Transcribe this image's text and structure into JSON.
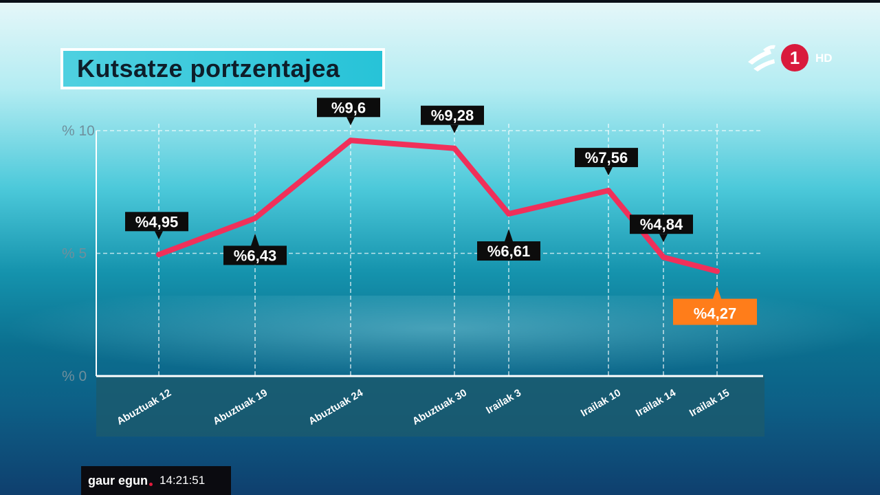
{
  "title": "Kutsatze portzentajea",
  "channel": {
    "logo_number": "1",
    "hd_label": "HD",
    "accent_color": "#d91a3c"
  },
  "ticker": {
    "brand": "gaur egun",
    "time": "14:21:51"
  },
  "colors": {
    "line": "#f0305a",
    "label_bg": "#0c0c0c",
    "highlight_bg": "#ff7d1a",
    "plot_band": "#1b5a6e"
  },
  "chart_data": {
    "type": "line",
    "title": "Kutsatze portzentajea",
    "xlabel": "",
    "ylabel": "",
    "ylim": [
      0,
      10
    ],
    "yticks": [
      {
        "value": 10,
        "label": "% 10"
      },
      {
        "value": 5,
        "label": "% 5"
      },
      {
        "value": 0,
        "label": "% 0"
      }
    ],
    "grid": true,
    "categories": [
      "Abuztuak 12",
      "Abuztuak 19",
      "Abuztuak 24",
      "Abuztuak 30",
      "Irailak 3",
      "Irailak 10",
      "Irailak 14",
      "Irailak 15"
    ],
    "series": [
      {
        "values": [
          4.95,
          6.43,
          9.6,
          9.28,
          6.61,
          7.56,
          4.84,
          4.27
        ],
        "labels": [
          "%4,95",
          "%6,43",
          "%9,6",
          "%9,28",
          "%6,61",
          "%7,56",
          "%4,84",
          "%4,27"
        ]
      }
    ],
    "highlight_last": true
  }
}
